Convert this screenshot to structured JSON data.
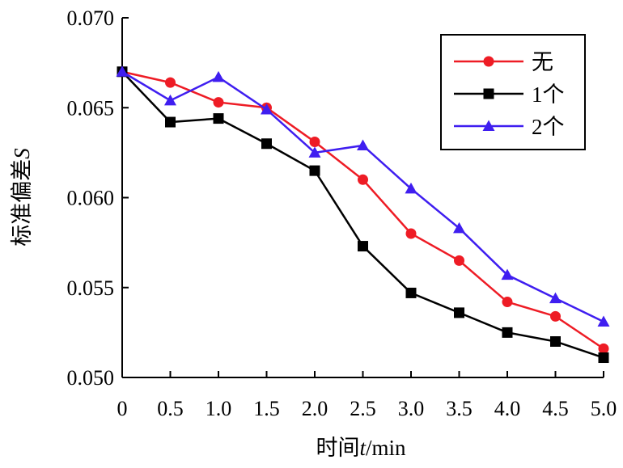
{
  "chart_data": {
    "type": "line",
    "x": [
      0,
      0.5,
      1.0,
      1.5,
      2.0,
      2.5,
      3.0,
      3.5,
      4.0,
      4.5,
      5.0
    ],
    "x_tick_labels": [
      "0",
      "0.5",
      "1.0",
      "1.5",
      "2.0",
      "2.5",
      "3.0",
      "3.5",
      "4.0",
      "4.5",
      "5.0"
    ],
    "y_ticks": [
      0.05,
      0.055,
      0.06,
      0.065,
      0.07
    ],
    "y_tick_labels": [
      "0.050",
      "0.055",
      "0.060",
      "0.065",
      "0.070"
    ],
    "xlim": [
      0,
      5.0
    ],
    "ylim": [
      0.05,
      0.07
    ],
    "xlabel": {
      "prefix": "时间",
      "var": "t",
      "unit": "/min"
    },
    "ylabel": {
      "prefix": "标准偏差",
      "var": "S"
    },
    "grid": false,
    "legend_position": "top-right",
    "series": [
      {
        "name": "无",
        "color": "#ee1c25",
        "marker": "circle",
        "values": [
          0.067,
          0.0664,
          0.0653,
          0.065,
          0.0631,
          0.061,
          0.058,
          0.0565,
          0.0542,
          0.0534,
          0.0516
        ]
      },
      {
        "name": "1个",
        "color": "#000000",
        "marker": "square",
        "values": [
          0.067,
          0.0642,
          0.0644,
          0.063,
          0.0615,
          0.0573,
          0.0547,
          0.0536,
          0.0525,
          0.052,
          0.0511
        ]
      },
      {
        "name": "2个",
        "color": "#3f1ef0",
        "marker": "triangle",
        "values": [
          0.067,
          0.0654,
          0.0667,
          0.0649,
          0.0625,
          0.0629,
          0.0605,
          0.0583,
          0.0557,
          0.0544,
          0.0531
        ]
      }
    ]
  }
}
